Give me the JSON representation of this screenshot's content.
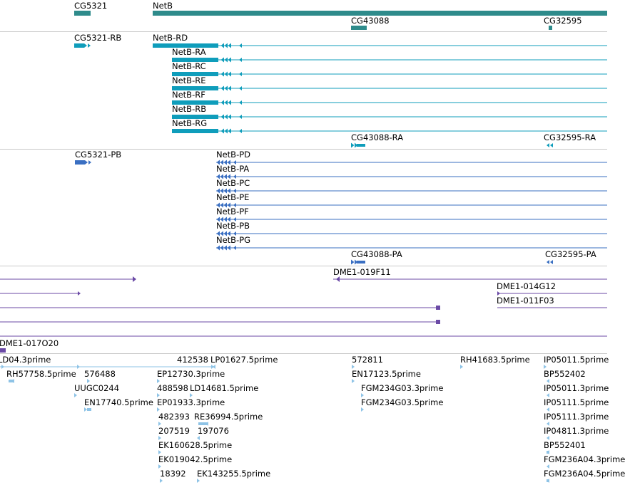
{
  "colors": {
    "gene": "#2e8b8b",
    "mrna": "#0f9dbb",
    "protein": "#3a6fc2",
    "clone": "#6b4aa6",
    "est": "#8ec3e6",
    "separator": "#c9c9c9"
  },
  "gene_track": {
    "labels": [
      "CG5321",
      "NetB",
      "CG43088",
      "CG32595"
    ]
  },
  "mrna_track": {
    "labels": [
      "CG5321-RB",
      "NetB-RD",
      "NetB-RA",
      "NetB-RC",
      "NetB-RE",
      "NetB-RF",
      "NetB-RB",
      "NetB-RG",
      "CG43088-RA",
      "CG32595-RA"
    ]
  },
  "protein_track": {
    "labels": [
      "CG5321-PB",
      "NetB-PD",
      "NetB-PA",
      "NetB-PC",
      "NetB-PE",
      "NetB-PF",
      "NetB-PB",
      "NetB-PG",
      "CG43088-PA",
      "CG32595-PA"
    ]
  },
  "clone_track": {
    "labels": [
      "DME1-019F11",
      "DME1-014G12",
      "DME1-011F03",
      "DME1-017O20"
    ]
  },
  "est_track": {
    "labels": [
      "LD04.3prime",
      "412538",
      "LP01627.5prime",
      "572811",
      "RH41683.5prime",
      "IP05011.5prime",
      "RH57758.5prime",
      "576488",
      "EP12730.3prime",
      "EN17123.5prime",
      "BP552402",
      "UUGC0244",
      "488598",
      "LD14681.5prime",
      "FGM234G03.3prime",
      "IP05011.3prime",
      "EN17740.5prime",
      "EP01933.3prime",
      "FGM234G03.5prime",
      "IP05111.5prime",
      "482393",
      "RE36994.5prime",
      "IP05111.3prime",
      "207519",
      "197076",
      "IP04811.3prime",
      "EK160628.5prime",
      "BP552401",
      "EK019042.5prime",
      "FGM236A04.3prime",
      "18392",
      "EK143255.5prime",
      "FGM236A04.5prime"
    ]
  }
}
